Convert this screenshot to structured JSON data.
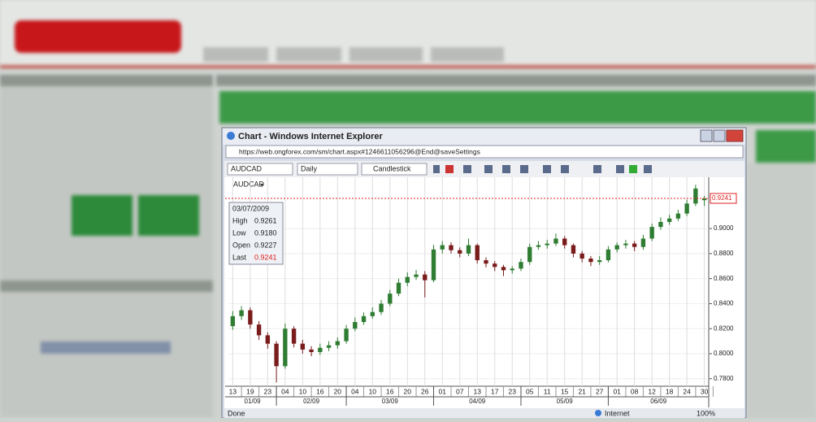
{
  "window": {
    "title": "Chart - Windows Internet Explorer",
    "url": "https://web.ongforex.com/sm/chart.aspx#1246611056296@End@saveSettings"
  },
  "toolbar": {
    "symbol": "AUDCAD",
    "period": "Daily",
    "chart_type": "Candlestick"
  },
  "info": {
    "date": "03/07/2009",
    "rows": [
      [
        "High",
        "0.9261"
      ],
      [
        "Low",
        "0.9180"
      ],
      [
        "Open",
        "0.9227"
      ],
      [
        "Last",
        "0.9241"
      ]
    ]
  },
  "status": {
    "left": "Done",
    "zone": "Internet",
    "zoom": "100%"
  },
  "chart_data": {
    "type": "candlestick",
    "symbol_label": "AUDCAD",
    "categories": [
      "13",
      null,
      "19",
      null,
      "23",
      null,
      "04",
      null,
      "10",
      null,
      "16",
      null,
      "20",
      null,
      "04",
      null,
      "10",
      null,
      "16",
      null,
      "20",
      null,
      "26",
      null,
      "01",
      null,
      "07",
      null,
      "13",
      null,
      "17",
      null,
      "23",
      null,
      "05",
      null,
      "11",
      null,
      "15",
      null,
      "21",
      null,
      "27",
      null,
      "01",
      null,
      "08",
      null,
      "12",
      null,
      "18",
      null,
      "24",
      null,
      "30"
    ],
    "months": [
      "01/09",
      "02/09",
      "03/09",
      "04/09",
      "05/09",
      "06/09"
    ],
    "ohlc": [
      [
        0.822,
        0.834,
        0.819,
        0.83
      ],
      [
        0.83,
        0.838,
        0.827,
        0.8347
      ],
      [
        0.8347,
        0.837,
        0.82,
        0.8233
      ],
      [
        0.8233,
        0.826,
        0.811,
        0.8147
      ],
      [
        0.8147,
        0.817,
        0.804,
        0.808
      ],
      [
        0.808,
        0.81,
        0.777,
        0.79
      ],
      [
        0.79,
        0.824,
        0.788,
        0.82
      ],
      [
        0.82,
        0.822,
        0.805,
        0.808
      ],
      [
        0.808,
        0.811,
        0.8,
        0.8033
      ],
      [
        0.8033,
        0.806,
        0.798,
        0.8013
      ],
      [
        0.8013,
        0.808,
        0.799,
        0.8047
      ],
      [
        0.8047,
        0.81,
        0.802,
        0.8067
      ],
      [
        0.8067,
        0.813,
        0.804,
        0.81
      ],
      [
        0.81,
        0.823,
        0.808,
        0.82
      ],
      [
        0.82,
        0.829,
        0.818,
        0.8253
      ],
      [
        0.8253,
        0.833,
        0.823,
        0.83
      ],
      [
        0.83,
        0.837,
        0.828,
        0.8333
      ],
      [
        0.8333,
        0.843,
        0.831,
        0.84
      ],
      [
        0.84,
        0.851,
        0.838,
        0.848
      ],
      [
        0.848,
        0.86,
        0.846,
        0.8567
      ],
      [
        0.8567,
        0.865,
        0.854,
        0.8613
      ],
      [
        0.8613,
        0.867,
        0.859,
        0.8633
      ],
      [
        0.8633,
        0.866,
        0.845,
        0.8587
      ],
      [
        0.8587,
        0.887,
        0.857,
        0.8833
      ],
      [
        0.8833,
        0.89,
        0.88,
        0.8867
      ],
      [
        0.8867,
        0.889,
        0.88,
        0.8827
      ],
      [
        0.8827,
        0.885,
        0.877,
        0.88
      ],
      [
        0.88,
        0.892,
        0.878,
        0.8867
      ],
      [
        0.8867,
        0.888,
        0.872,
        0.8747
      ],
      [
        0.8747,
        0.877,
        0.869,
        0.872
      ],
      [
        0.872,
        0.874,
        0.866,
        0.8693
      ],
      [
        0.8693,
        0.871,
        0.862,
        0.8667
      ],
      [
        0.8667,
        0.87,
        0.864,
        0.868
      ],
      [
        0.868,
        0.876,
        0.866,
        0.8733
      ],
      [
        0.8733,
        0.888,
        0.871,
        0.8853
      ],
      [
        0.8853,
        0.89,
        0.883,
        0.8867
      ],
      [
        0.8867,
        0.891,
        0.884,
        0.888
      ],
      [
        0.888,
        0.896,
        0.886,
        0.892
      ],
      [
        0.892,
        0.894,
        0.884,
        0.8867
      ],
      [
        0.8867,
        0.888,
        0.877,
        0.88
      ],
      [
        0.88,
        0.882,
        0.873,
        0.876
      ],
      [
        0.876,
        0.878,
        0.87,
        0.8733
      ],
      [
        0.8733,
        0.878,
        0.871,
        0.8747
      ],
      [
        0.8747,
        0.886,
        0.873,
        0.8833
      ],
      [
        0.8833,
        0.889,
        0.881,
        0.8867
      ],
      [
        0.8867,
        0.891,
        0.884,
        0.888
      ],
      [
        0.888,
        0.89,
        0.882,
        0.8853
      ],
      [
        0.8853,
        0.895,
        0.883,
        0.892
      ],
      [
        0.892,
        0.904,
        0.89,
        0.9013
      ],
      [
        0.9013,
        0.909,
        0.899,
        0.9053
      ],
      [
        0.9053,
        0.911,
        0.903,
        0.908
      ],
      [
        0.908,
        0.915,
        0.906,
        0.912
      ],
      [
        0.912,
        0.923,
        0.91,
        0.92
      ],
      [
        0.92,
        0.935,
        0.918,
        0.932
      ],
      [
        0.9227,
        0.9261,
        0.918,
        0.9241
      ]
    ],
    "up_color": "#2f7d32",
    "down_color": "#7a1c1c",
    "ylim": [
      0.774,
      0.941
    ],
    "yticks": [
      {
        "value": 0.78,
        "label": "0.7800"
      },
      {
        "value": 0.8,
        "label": "0.8000"
      },
      {
        "value": 0.82,
        "label": "0.8200"
      },
      {
        "value": 0.84,
        "label": "0.8400"
      },
      {
        "value": 0.86,
        "label": "0.8600"
      },
      {
        "value": 0.88,
        "label": "0.8800"
      },
      {
        "value": 0.9,
        "label": "0.9000"
      }
    ],
    "last_price": {
      "value": 0.9241,
      "label": "0.9241"
    },
    "last_color": "#e02020",
    "grid": true
  }
}
